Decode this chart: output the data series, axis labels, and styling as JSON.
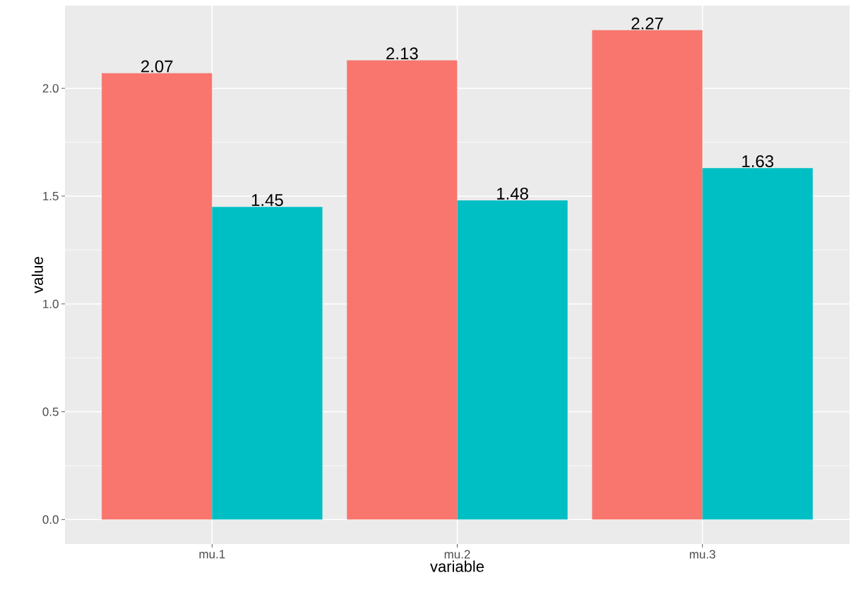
{
  "chart_data": {
    "type": "bar",
    "xlabel": "variable",
    "ylabel": "value",
    "categories": [
      "mu.1",
      "mu.2",
      "mu.3"
    ],
    "series": [
      {
        "color": "#f8766d",
        "values": [
          2.07,
          2.13,
          2.27
        ]
      },
      {
        "color": "#00bfc4",
        "values": [
          1.45,
          1.48,
          1.63
        ]
      }
    ],
    "ylim": [
      -0.1135,
      2.3835
    ],
    "yticks": [
      {
        "value": 0,
        "label": "0.0"
      },
      {
        "value": 0.5,
        "label": "0.5"
      },
      {
        "value": 1,
        "label": "1.0"
      },
      {
        "value": 1.5,
        "label": "1.5"
      },
      {
        "value": 2,
        "label": "2.0"
      }
    ],
    "grid": true,
    "data_labels": true
  }
}
